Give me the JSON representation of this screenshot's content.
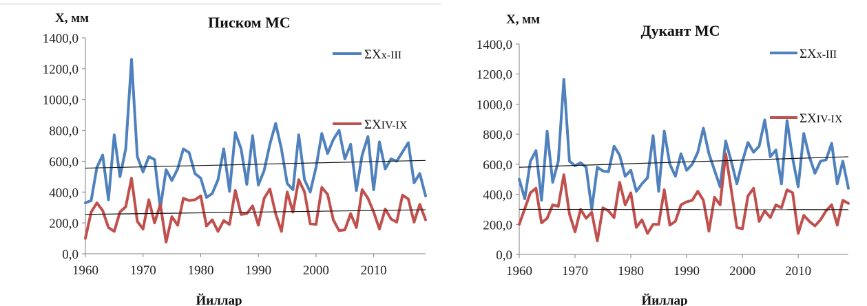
{
  "chart_data": [
    {
      "type": "line",
      "title": "Писком МС",
      "ylabel": "X, мм",
      "xlabel": "Йиллар",
      "ylim": [
        0,
        1400
      ],
      "xlim": [
        1960,
        2019
      ],
      "yticks": [
        "0,0",
        "200,0",
        "400,0",
        "600,0",
        "800,0",
        "1000,0",
        "1200,0",
        "1400,0"
      ],
      "xticks": [
        "1960",
        "1970",
        "1980",
        "1990",
        "2000",
        "2010"
      ],
      "x": [
        1960,
        1961,
        1962,
        1963,
        1964,
        1965,
        1966,
        1967,
        1968,
        1969,
        1970,
        1971,
        1972,
        1973,
        1974,
        1975,
        1976,
        1977,
        1978,
        1979,
        1980,
        1981,
        1982,
        1983,
        1984,
        1985,
        1986,
        1987,
        1988,
        1989,
        1990,
        1991,
        1992,
        1993,
        1994,
        1995,
        1996,
        1997,
        1998,
        1999,
        2000,
        2001,
        2002,
        2003,
        2004,
        2005,
        2006,
        2007,
        2008,
        2009,
        2010,
        2011,
        2012,
        2013,
        2014,
        2015,
        2016,
        2017,
        2018,
        2019
      ],
      "series": [
        {
          "name": "ΣXx-III",
          "color": "#4f81bd",
          "values": [
            330,
            345,
            560,
            640,
            350,
            770,
            500,
            680,
            1260,
            630,
            530,
            630,
            610,
            295,
            545,
            475,
            550,
            680,
            655,
            520,
            490,
            365,
            390,
            480,
            680,
            405,
            785,
            680,
            450,
            765,
            445,
            540,
            710,
            845,
            680,
            455,
            415,
            770,
            480,
            400,
            560,
            780,
            650,
            740,
            800,
            615,
            710,
            410,
            640,
            760,
            415,
            725,
            550,
            615,
            600,
            660,
            720,
            460,
            520,
            375
          ]
        },
        {
          "name": "ΣXIV-IX",
          "color": "#c0504d",
          "values": [
            100,
            270,
            330,
            280,
            170,
            145,
            270,
            305,
            490,
            210,
            160,
            350,
            200,
            320,
            75,
            240,
            185,
            360,
            345,
            350,
            375,
            180,
            220,
            145,
            215,
            190,
            410,
            255,
            260,
            310,
            185,
            360,
            420,
            260,
            145,
            400,
            270,
            480,
            400,
            195,
            190,
            430,
            385,
            220,
            150,
            155,
            260,
            170,
            415,
            360,
            270,
            160,
            290,
            225,
            205,
            380,
            355,
            205,
            320,
            220
          ]
        }
      ],
      "trendlines": [
        {
          "series": "ΣXx-III",
          "start": 555,
          "end": 605
        },
        {
          "series": "ΣXIV-IX",
          "start": 255,
          "end": 285
        }
      ]
    },
    {
      "type": "line",
      "title": "Дукант МС",
      "ylabel": "X, мм",
      "xlabel": "Йиллар",
      "ylim": [
        0,
        1400
      ],
      "xlim": [
        1960,
        2019
      ],
      "yticks": [
        "0,0",
        "200,0",
        "400,0",
        "600,0",
        "800,0",
        "1000,0",
        "1200,0",
        "1400,0"
      ],
      "xticks": [
        "1960",
        "1970",
        "1980",
        "1990",
        "2000",
        "2010"
      ],
      "x": [
        1960,
        1961,
        1962,
        1963,
        1964,
        1965,
        1966,
        1967,
        1968,
        1969,
        1970,
        1971,
        1972,
        1973,
        1974,
        1975,
        1976,
        1977,
        1978,
        1979,
        1980,
        1981,
        1982,
        1983,
        1984,
        1985,
        1986,
        1987,
        1988,
        1989,
        1990,
        1991,
        1992,
        1993,
        1994,
        1995,
        1996,
        1997,
        1998,
        1999,
        2000,
        2001,
        2002,
        2003,
        2004,
        2005,
        2006,
        2007,
        2008,
        2009,
        2010,
        2011,
        2012,
        2013,
        2014,
        2015,
        2016,
        2017,
        2018,
        2019
      ],
      "series": [
        {
          "name": "ΣXx-III",
          "color": "#4f81bd",
          "values": [
            500,
            370,
            620,
            690,
            360,
            820,
            480,
            620,
            1165,
            620,
            590,
            610,
            580,
            300,
            580,
            555,
            550,
            720,
            660,
            520,
            560,
            420,
            470,
            510,
            790,
            420,
            820,
            600,
            520,
            670,
            560,
            600,
            680,
            840,
            670,
            560,
            450,
            755,
            620,
            470,
            620,
            745,
            680,
            720,
            895,
            650,
            695,
            470,
            890,
            640,
            450,
            805,
            650,
            540,
            620,
            630,
            740,
            470,
            620,
            440
          ]
        },
        {
          "name": "ΣXIV-IX",
          "color": "#c0504d",
          "values": [
            200,
            305,
            410,
            440,
            210,
            240,
            330,
            320,
            530,
            270,
            150,
            300,
            240,
            280,
            90,
            310,
            290,
            245,
            480,
            330,
            410,
            180,
            230,
            140,
            200,
            200,
            430,
            195,
            220,
            330,
            350,
            360,
            420,
            360,
            155,
            380,
            330,
            670,
            430,
            180,
            170,
            390,
            440,
            220,
            290,
            245,
            330,
            310,
            430,
            410,
            140,
            260,
            220,
            190,
            230,
            290,
            330,
            195,
            360,
            340
          ]
        }
      ],
      "trendlines": [
        {
          "series": "ΣXx-III",
          "start": 580,
          "end": 650
        },
        {
          "series": "ΣXIV-IX",
          "start": 300,
          "end": 298
        }
      ]
    }
  ]
}
